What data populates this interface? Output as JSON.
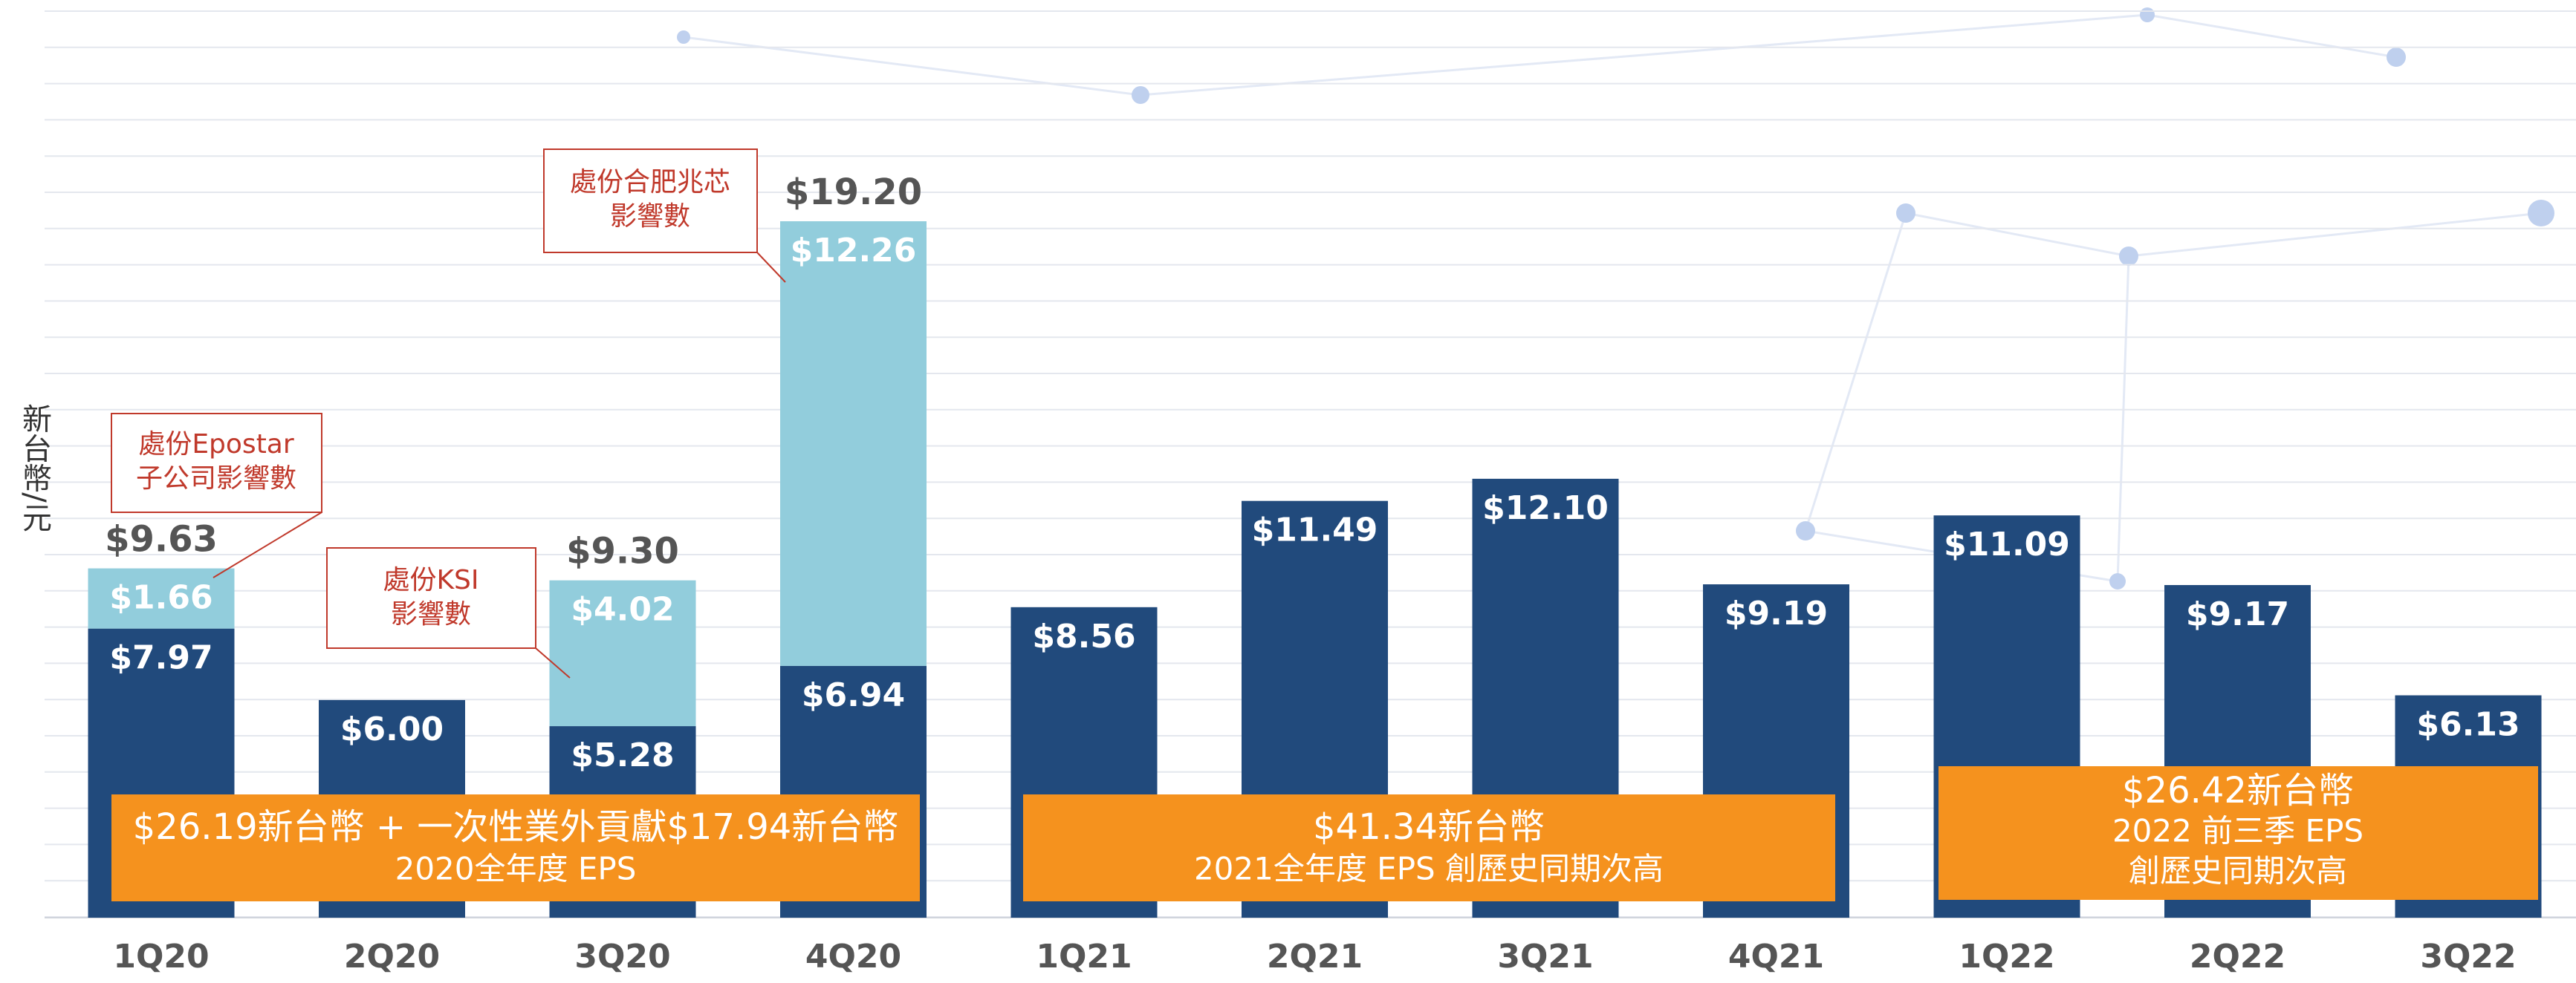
{
  "chart_data": {
    "type": "stacked_bar",
    "y_label": "新台幣/元",
    "categories": [
      "1Q20",
      "2Q20",
      "3Q20",
      "4Q20",
      "1Q21",
      "2Q21",
      "3Q21",
      "4Q21",
      "1Q22",
      "2Q22",
      "3Q22"
    ],
    "series": [
      {
        "color": "#214a7c",
        "values": [
          7.97,
          6.0,
          5.28,
          6.94,
          8.56,
          11.49,
          12.1,
          9.19,
          11.09,
          9.17,
          6.13
        ],
        "value_labels": [
          "$7.97",
          "$6.00",
          "$5.28",
          "$6.94",
          "$8.56",
          "$11.49",
          "$12.10",
          "$9.19",
          "$11.09",
          "$9.17",
          "$6.13"
        ]
      },
      {
        "color": "#92cddc",
        "values": [
          1.66,
          null,
          4.02,
          12.26,
          null,
          null,
          null,
          null,
          null,
          null,
          null
        ],
        "value_labels": [
          "$1.66",
          null,
          "$4.02",
          "$12.26",
          null,
          null,
          null,
          null,
          null,
          null,
          null
        ]
      }
    ],
    "totals": {
      "values": [
        9.63,
        null,
        9.3,
        19.2,
        null,
        null,
        null,
        null,
        null,
        null,
        null
      ],
      "value_labels": [
        "$9.63",
        null,
        "$9.30",
        "$19.20",
        null,
        null,
        null,
        null,
        null,
        null,
        null
      ]
    },
    "ylim": [
      0,
      25.3
    ],
    "callouts": [
      {
        "lines": [
          "處份Epostar",
          "子公司影響數"
        ]
      },
      {
        "lines": [
          "處份KSI",
          "影響數"
        ]
      },
      {
        "lines": [
          "處份合肥兆芯",
          "影響數"
        ]
      }
    ],
    "summaries": [
      {
        "lines": [
          "$26.19新台幣 + 一次性業外貢獻$17.94新台幣",
          "2020全年度 EPS"
        ]
      },
      {
        "lines": [
          "$41.34新台幣",
          "2021全年度 EPS 創歷史同期次高"
        ]
      },
      {
        "lines": [
          "$26.42新台幣",
          "2022 前三季 EPS",
          "創歷史同期次高"
        ]
      }
    ]
  }
}
